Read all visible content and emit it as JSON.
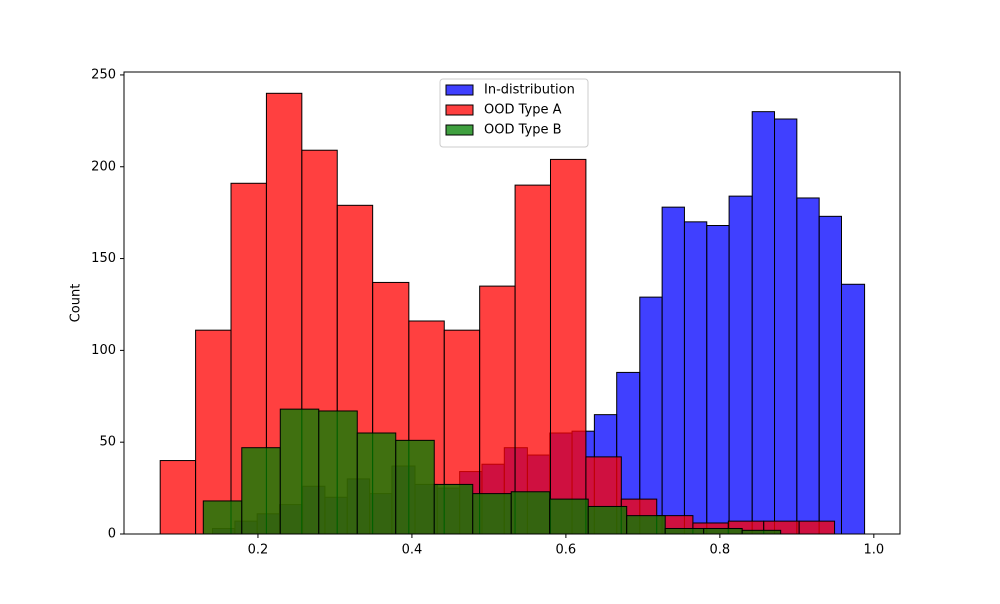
{
  "chart_data": {
    "type": "histogram",
    "ylabel": "Count",
    "series": [
      {
        "name": "In-distribution",
        "color": "#0000ff",
        "bins": [
          0.141,
          0.17,
          0.199,
          0.228,
          0.258,
          0.287,
          0.316,
          0.345,
          0.374,
          0.404,
          0.433,
          0.462,
          0.491,
          0.52,
          0.55,
          0.579,
          0.608,
          0.637,
          0.666,
          0.696,
          0.725,
          0.754,
          0.783,
          0.812,
          0.842,
          0.871,
          0.9,
          0.929,
          0.958,
          0.988
        ],
        "values": [
          3,
          7,
          11,
          16,
          26,
          20,
          30,
          22,
          37,
          27,
          25,
          34,
          38,
          47,
          43,
          55,
          56,
          65,
          88,
          129,
          178,
          170,
          168,
          184,
          230,
          226,
          183,
          173,
          136
        ]
      },
      {
        "name": "OOD Type A",
        "color": "#ff0000",
        "bins": [
          0.073,
          0.119,
          0.165,
          0.211,
          0.257,
          0.303,
          0.349,
          0.396,
          0.442,
          0.488,
          0.534,
          0.58,
          0.626,
          0.672,
          0.718,
          0.765,
          0.811,
          0.857,
          0.903,
          0.949
        ],
        "values": [
          40,
          111,
          191,
          240,
          209,
          179,
          137,
          116,
          111,
          135,
          190,
          204,
          42,
          19,
          10,
          6,
          7,
          7,
          7
        ]
      },
      {
        "name": "OOD Type B",
        "color": "#008000",
        "bins": [
          0.129,
          0.179,
          0.229,
          0.279,
          0.329,
          0.379,
          0.429,
          0.479,
          0.529,
          0.579,
          0.629,
          0.679,
          0.729,
          0.779,
          0.829,
          0.879
        ],
        "values": [
          18,
          47,
          68,
          67,
          55,
          51,
          27,
          22,
          23,
          19,
          15,
          10,
          3,
          3,
          2
        ]
      }
    ],
    "xlim": [
      0.026,
      1.034
    ],
    "ylim": [
      0,
      251.6
    ],
    "xticks": [
      0.2,
      0.4,
      0.6,
      0.8,
      {
        "value": 1,
        "label": "1.0"
      }
    ],
    "yticks": [
      0,
      50,
      100,
      150,
      200,
      250
    ],
    "legend": "upper center"
  }
}
